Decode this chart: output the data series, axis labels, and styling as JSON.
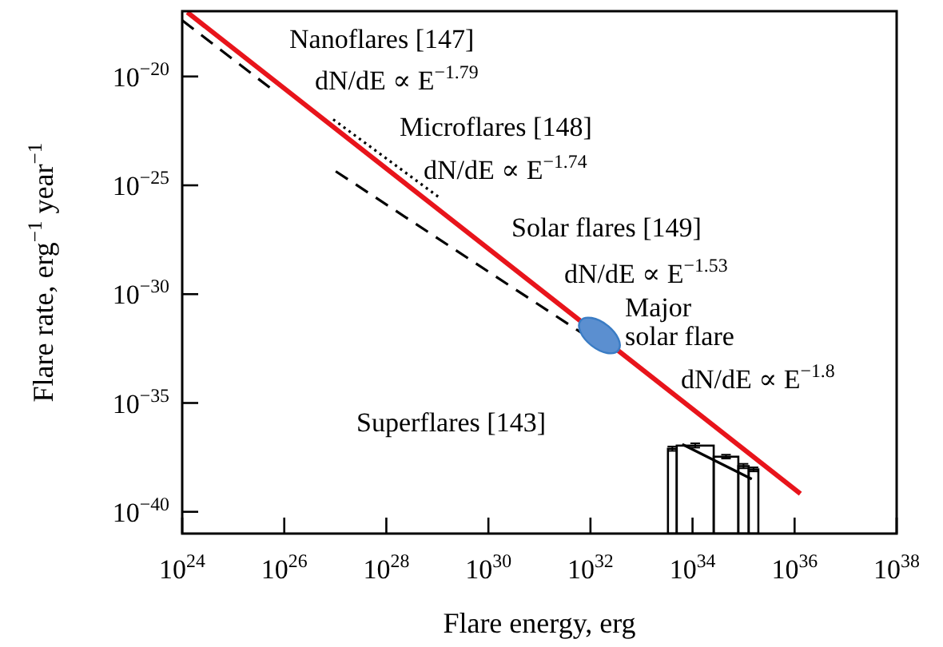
{
  "chart_data": {
    "type": "line",
    "xlabel": "Flare energy, erg",
    "ylabel": "Flare rate, erg$^{−1}$ year$^{−1}$",
    "log": "xy",
    "grid": false,
    "xlim": [
      1e+24,
      1e+38
    ],
    "ylim": [
      1e-41,
      1e-17
    ],
    "xticks": [
      {
        "value": 1e+24,
        "label": "10$^{24}$"
      },
      {
        "value": 1e+26,
        "label": "10$^{26}$"
      },
      {
        "value": 1e+28,
        "label": "10$^{28}$"
      },
      {
        "value": 1e+30,
        "label": "10$^{30}$"
      },
      {
        "value": 1e+32,
        "label": "10$^{32}$"
      },
      {
        "value": 1e+34,
        "label": "10$^{34}$"
      },
      {
        "value": 1e+36,
        "label": "10$^{36}$"
      },
      {
        "value": 1e+38,
        "label": "10$^{38}$"
      }
    ],
    "yticks": [
      {
        "value": 1e-20,
        "label": "10$^{−20}$"
      },
      {
        "value": 1e-25,
        "label": "10$^{−25}$"
      },
      {
        "value": 1e-30,
        "label": "10$^{−30}$"
      },
      {
        "value": 1e-35,
        "label": "10$^{−35}$"
      },
      {
        "value": 1e-40,
        "label": "10$^{−40}$"
      }
    ],
    "series": [
      {
        "color": "#e8141b",
        "line_style": "solid",
        "x": [
          1.26e+24,
          1.3e+36
        ],
        "values": [
          8.9e-18,
          6.8e-40
        ]
      },
      {
        "color": "#000000",
        "line_style": "dashed",
        "x": [
          1e+24,
          5.7e+25
        ],
        "values": [
          3.8e-18,
          2.6e-21
        ]
      },
      {
        "color": "#000000",
        "line_style": "dotted",
        "x": [
          9.1e+26,
          1.05e+29
        ],
        "values": [
          1.07e-22,
          2.95e-26
        ]
      },
      {
        "color": "#000000",
        "line_style": "dashed",
        "x": [
          1.02e+27,
          6.6e+31
        ],
        "values": [
          4.4e-25,
          1.7e-32
        ]
      },
      {
        "type": "scatter",
        "color": "#5b8fd0",
        "marker": "circle",
        "x": [
          1.5e+32
        ],
        "values": [
          1.26e-32
        ]
      },
      {
        "type": "histogram",
        "color": "#000000",
        "bins": [
          3.3e+33,
          4.9e+33,
          2.6e+34,
          7.9e+34,
          1.26e+35,
          1.95e+35
        ],
        "values": [
          7.9e-38,
          1.1e-37,
          3.4e-38,
          1.26e-38,
          8.9e-39
        ],
        "errors": [
          [
            6.3e-38,
            1e-37
          ],
          [
            8.9e-38,
            1.4e-37
          ],
          [
            2.8e-38,
            4.2e-38
          ],
          [
            1e-38,
            1.6e-38
          ],
          [
            7.2e-39,
            1.1e-38
          ]
        ]
      },
      {
        "color": "#000000",
        "line_style": "solid",
        "x": [
          6.3e+33,
          1.45e+35
        ],
        "values": [
          1.26e-37,
          3.2e-39
        ]
      }
    ],
    "annotations": [
      "Nanoflares [147]",
      "dN/dE ∝ E$^{−1.79}$",
      "Microflares  [148]",
      "dN/dE ∝ E$^{−1.74}$",
      "Solar flares  [149]",
      "dN/dE ∝ E$^{−1.53}$",
      "Major\nsolar flare",
      "dN/dE ∝ E$^{−1.8}$",
      "Superflares [143]"
    ]
  }
}
